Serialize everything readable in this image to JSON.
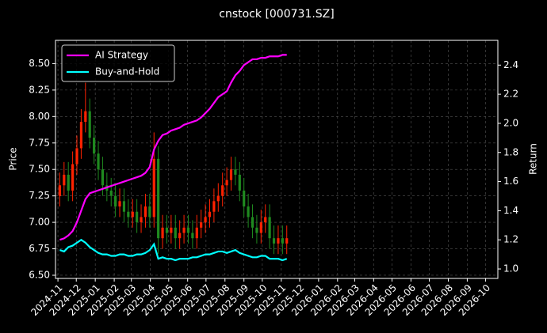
{
  "chart_data": {
    "type": "candlestick",
    "title": "cnstock [000731.SZ]",
    "ylabel": "Price",
    "y2label": "Return",
    "x": [
      "2024-11-04",
      "2024-11-11",
      "2024-11-18",
      "2024-11-25",
      "2024-12-02",
      "2024-12-09",
      "2024-12-16",
      "2024-12-23",
      "2024-12-30",
      "2025-01-06",
      "2025-01-13",
      "2025-01-20",
      "2025-01-27",
      "2025-02-03",
      "2025-02-10",
      "2025-02-17",
      "2025-02-24",
      "2025-03-03",
      "2025-03-10",
      "2025-03-17",
      "2025-03-24",
      "2025-03-31",
      "2025-04-07",
      "2025-04-14",
      "2025-04-21",
      "2025-04-28",
      "2025-05-05",
      "2025-05-12",
      "2025-05-19",
      "2025-05-26",
      "2025-06-02",
      "2025-06-09",
      "2025-06-16",
      "2025-06-23",
      "2025-06-30",
      "2025-07-07",
      "2025-07-14",
      "2025-07-21",
      "2025-07-28",
      "2025-08-04",
      "2025-08-11",
      "2025-08-18",
      "2025-08-25",
      "2025-09-01",
      "2025-09-08",
      "2025-09-15",
      "2025-09-22",
      "2025-09-29",
      "2025-10-06",
      "2025-10-13",
      "2025-10-20",
      "2025-10-27",
      "2025-11-03",
      "2025-11-10"
    ],
    "open": [
      7.25,
      7.35,
      7.45,
      7.3,
      7.55,
      7.7,
      7.95,
      8.05,
      7.8,
      7.65,
      7.5,
      7.35,
      7.3,
      7.25,
      7.15,
      7.2,
      7.1,
      7.05,
      7.1,
      7.0,
      7.05,
      7.15,
      7.05,
      7.6,
      6.85,
      6.95,
      6.9,
      6.95,
      6.85,
      6.9,
      6.95,
      6.9,
      6.85,
      6.95,
      7.0,
      7.05,
      7.1,
      7.2,
      7.25,
      7.35,
      7.4,
      7.5,
      7.45,
      7.3,
      7.15,
      7.05,
      6.95,
      6.9,
      7.0,
      7.05,
      6.85,
      6.8,
      6.85,
      6.8
    ],
    "high": [
      7.47,
      7.57,
      7.57,
      7.67,
      7.82,
      8.07,
      8.32,
      8.17,
      7.92,
      7.77,
      7.62,
      7.47,
      7.42,
      7.37,
      7.32,
      7.32,
      7.22,
      7.22,
      7.22,
      7.17,
      7.27,
      7.27,
      7.85,
      7.72,
      7.07,
      7.07,
      7.07,
      7.07,
      7.02,
      7.07,
      7.07,
      7.02,
      7.07,
      7.12,
      7.17,
      7.22,
      7.32,
      7.37,
      7.47,
      7.52,
      7.62,
      7.62,
      7.57,
      7.42,
      7.27,
      7.17,
      7.07,
      7.12,
      7.17,
      7.17,
      6.97,
      6.97,
      6.97,
      6.97
    ],
    "low": [
      7.15,
      7.25,
      7.2,
      7.2,
      7.45,
      7.6,
      7.85,
      7.7,
      7.55,
      7.4,
      7.25,
      7.2,
      7.15,
      7.05,
      7.05,
      7.0,
      6.95,
      6.95,
      6.9,
      6.9,
      6.95,
      6.95,
      6.95,
      6.7,
      6.75,
      6.8,
      6.8,
      6.75,
      6.75,
      6.8,
      6.8,
      6.75,
      6.75,
      6.85,
      6.9,
      6.95,
      7.0,
      7.1,
      7.15,
      7.25,
      7.3,
      7.35,
      7.2,
      7.05,
      6.95,
      6.85,
      6.8,
      6.8,
      6.9,
      6.75,
      6.7,
      6.7,
      6.7,
      6.7
    ],
    "close": [
      7.35,
      7.45,
      7.3,
      7.55,
      7.7,
      7.95,
      8.05,
      7.8,
      7.65,
      7.5,
      7.35,
      7.3,
      7.25,
      7.15,
      7.2,
      7.1,
      7.05,
      7.1,
      7.0,
      7.05,
      7.15,
      7.05,
      7.6,
      6.85,
      6.95,
      6.9,
      6.95,
      6.85,
      6.9,
      6.95,
      6.9,
      6.85,
      6.95,
      7.0,
      7.05,
      7.1,
      7.2,
      7.25,
      7.35,
      7.4,
      7.5,
      7.45,
      7.3,
      7.15,
      7.05,
      6.95,
      6.9,
      7.0,
      7.05,
      6.85,
      6.8,
      6.85,
      6.8,
      6.85
    ],
    "up_color": "#ff2200",
    "down_color": "#1f8a1f",
    "series": [
      {
        "name": "AI Strategy",
        "color": "#ff00ff",
        "axis": "y2",
        "values": [
          1.2,
          1.21,
          1.23,
          1.26,
          1.32,
          1.4,
          1.48,
          1.52,
          1.53,
          1.54,
          1.55,
          1.56,
          1.57,
          1.58,
          1.59,
          1.6,
          1.61,
          1.62,
          1.63,
          1.64,
          1.66,
          1.7,
          1.82,
          1.88,
          1.92,
          1.93,
          1.95,
          1.96,
          1.97,
          1.99,
          2.0,
          2.01,
          2.02,
          2.04,
          2.07,
          2.1,
          2.14,
          2.18,
          2.2,
          2.22,
          2.28,
          2.33,
          2.36,
          2.4,
          2.42,
          2.44,
          2.44,
          2.45,
          2.45,
          2.46,
          2.46,
          2.46,
          2.47,
          2.47
        ]
      },
      {
        "name": "Buy-and-Hold",
        "color": "#00ffff",
        "axis": "y2",
        "values": [
          1.13,
          1.12,
          1.15,
          1.16,
          1.18,
          1.2,
          1.18,
          1.15,
          1.13,
          1.11,
          1.1,
          1.1,
          1.09,
          1.09,
          1.1,
          1.1,
          1.09,
          1.09,
          1.1,
          1.1,
          1.11,
          1.13,
          1.17,
          1.07,
          1.08,
          1.07,
          1.07,
          1.06,
          1.07,
          1.07,
          1.07,
          1.08,
          1.08,
          1.09,
          1.1,
          1.1,
          1.11,
          1.12,
          1.12,
          1.11,
          1.12,
          1.13,
          1.11,
          1.1,
          1.09,
          1.08,
          1.08,
          1.09,
          1.09,
          1.07,
          1.07,
          1.07,
          1.06,
          1.07
        ]
      }
    ],
    "xlim": [
      "2024-10-28",
      "2026-10-21"
    ],
    "xticks": [
      "2024-11",
      "2024-12",
      "2025-01",
      "2025-02",
      "2025-03",
      "2025-04",
      "2025-05",
      "2025-06",
      "2025-07",
      "2025-08",
      "2025-09",
      "2025-10",
      "2025-11",
      "2025-12",
      "2026-01",
      "2026-02",
      "2026-03",
      "2026-04",
      "2026-05",
      "2026-06",
      "2026-07",
      "2026-08",
      "2026-09",
      "2026-10"
    ],
    "ylim": [
      6.47,
      8.72
    ],
    "yticks": [
      {
        "value": 6.5,
        "label": "6.50"
      },
      {
        "value": 6.75,
        "label": "6.75"
      },
      {
        "value": 7.0,
        "label": "7.00"
      },
      {
        "value": 7.25,
        "label": "7.25"
      },
      {
        "value": 7.5,
        "label": "7.50"
      },
      {
        "value": 7.75,
        "label": "7.75"
      },
      {
        "value": 8.0,
        "label": "8.00"
      },
      {
        "value": 8.25,
        "label": "8.25"
      },
      {
        "value": 8.5,
        "label": "8.50"
      }
    ],
    "y2lim": [
      0.935,
      2.57
    ],
    "y2ticks": [
      {
        "value": 1.0,
        "label": "1.0"
      },
      1.2,
      1.4,
      1.6,
      1.8,
      {
        "value": 2.0,
        "label": "2.0"
      },
      2.2,
      2.4
    ],
    "grid": true,
    "legend": "upper left"
  }
}
